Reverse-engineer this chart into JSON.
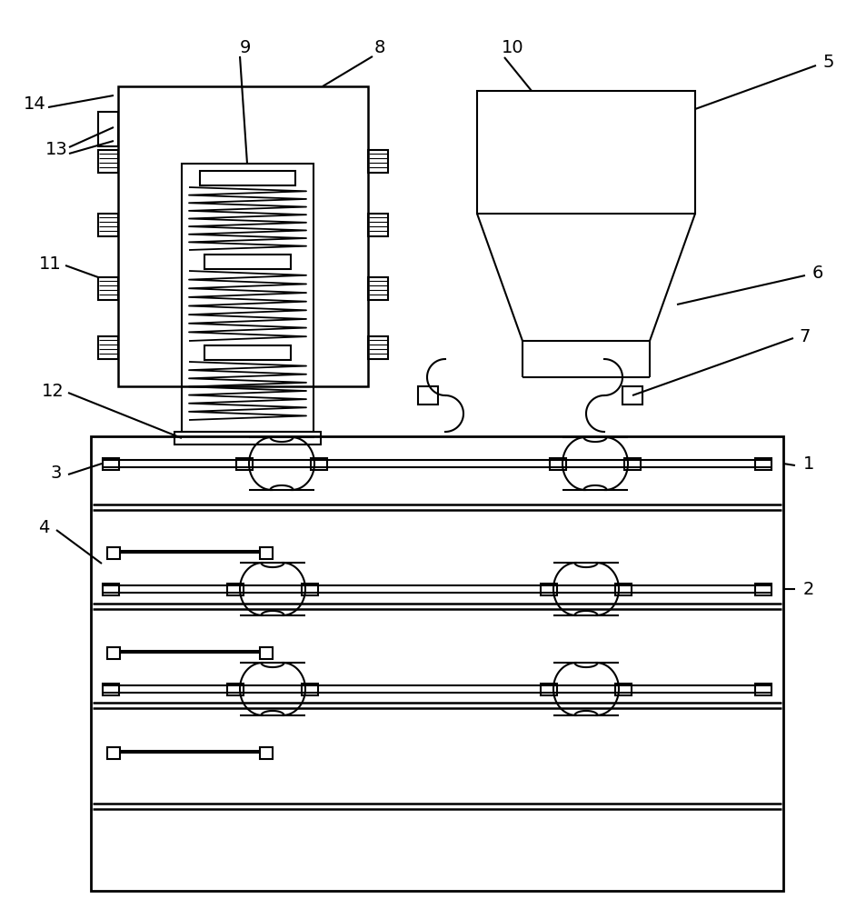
{
  "bg_color": "#ffffff",
  "line_color": "#000000",
  "lw": 1.5,
  "fig_w": 9.42,
  "fig_h": 10.0
}
